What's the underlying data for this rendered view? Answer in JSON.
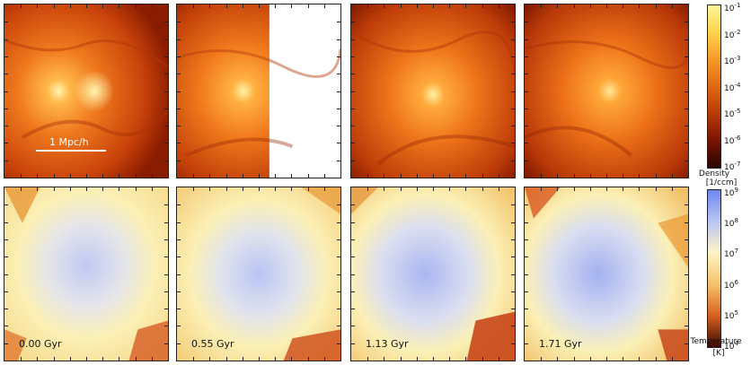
{
  "scalebar": {
    "label": "1 Mpc/h"
  },
  "time_labels": [
    "0.00 Gyr",
    "0.55 Gyr",
    "1.13 Gyr",
    "1.71 Gyr"
  ],
  "density_colorbar": {
    "title": "Density",
    "unit": "[1/ccm]",
    "tick_base": "10",
    "tick_exponents": [
      "-1",
      "-2",
      "-3",
      "-4",
      "-5",
      "-6",
      "-7"
    ],
    "colors": [
      "#fff59a",
      "#ffd24a",
      "#f59b2a",
      "#e06814",
      "#b83a08",
      "#7a1400",
      "#2a0400"
    ]
  },
  "temperature_colorbar": {
    "title": "Temperature",
    "unit": "[K]",
    "tick_base": "10",
    "tick_exponents": [
      "9",
      "8",
      "7",
      "6",
      "5",
      "4"
    ],
    "colors": [
      "#6f86f0",
      "#b8c6f5",
      "#fff4c4",
      "#f7c26a",
      "#d8601e",
      "#3a0a00"
    ]
  },
  "density_colors": {
    "core": "#ffee9a",
    "mid": "#f07a1e",
    "edge": "#9a2200"
  },
  "temperature_colors": {
    "hot": "#a9b6f1",
    "warm": "#fbf0b5",
    "cool": "#f0a43c",
    "cold": "#c8400c"
  }
}
